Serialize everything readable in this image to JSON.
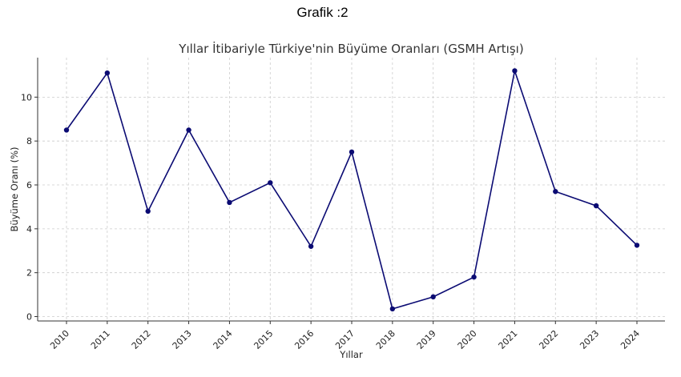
{
  "caption": "Grafik :2",
  "chart_data": {
    "type": "line",
    "title": "Yıllar İtibariyle Türkiye'nin Büyüme Oranları (GSMH Artışı)",
    "xlabel": "Yıllar",
    "ylabel": "Büyüme Oranı (%)",
    "x": [
      "2010",
      "2011",
      "2012",
      "2013",
      "2014",
      "2015",
      "2016",
      "2017",
      "2018",
      "2019",
      "2020",
      "2021",
      "2022",
      "2023",
      "2024"
    ],
    "series": [
      {
        "values": [
          8.5,
          11.1,
          4.8,
          8.5,
          5.2,
          6.1,
          3.2,
          7.5,
          0.35,
          0.9,
          1.8,
          11.2,
          5.7,
          5.05,
          3.25
        ]
      }
    ],
    "yticks": [
      0,
      2,
      4,
      6,
      8,
      10
    ],
    "ylim": [
      -0.2,
      11.8
    ],
    "grid": true,
    "color": "#0b0b73"
  }
}
